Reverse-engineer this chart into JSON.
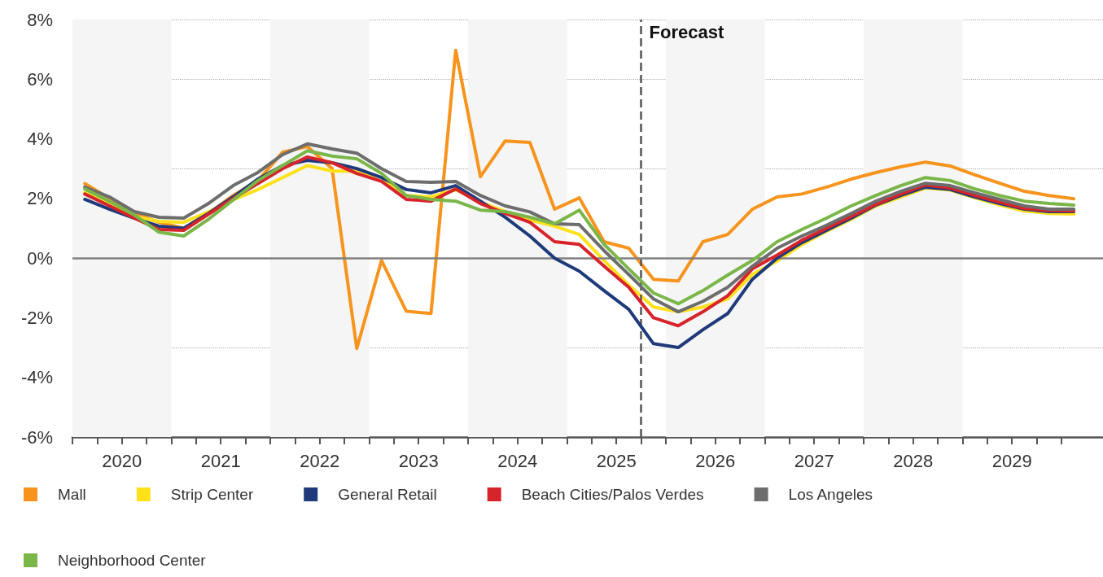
{
  "chart_data": {
    "type": "line",
    "x": [
      2020.125,
      2020.375,
      2020.625,
      2020.875,
      2021.125,
      2021.375,
      2021.625,
      2021.875,
      2022.125,
      2022.375,
      2022.625,
      2022.875,
      2023.125,
      2023.375,
      2023.625,
      2023.875,
      2024.125,
      2024.375,
      2024.625,
      2024.875,
      2025.125,
      2025.375,
      2025.625,
      2025.875,
      2026.125,
      2026.375,
      2026.625,
      2026.875,
      2027.125,
      2027.375,
      2027.625,
      2027.875,
      2028.125,
      2028.375,
      2028.625,
      2028.875,
      2029.125,
      2029.375,
      2029.625,
      2029.875,
      2030.125
    ],
    "xlim": [
      2020,
      2030.42
    ],
    "xticks": [
      {
        "value": 2020,
        "label": null
      },
      {
        "value": 2020.25,
        "label": null
      },
      {
        "value": 2020.5,
        "label": "2020"
      },
      {
        "value": 2020.75,
        "label": null
      },
      {
        "value": 2021,
        "label": null
      },
      {
        "value": 2021.25,
        "label": null
      },
      {
        "value": 2021.5,
        "label": "2021"
      },
      {
        "value": 2021.75,
        "label": null
      },
      {
        "value": 2022,
        "label": null
      },
      {
        "value": 2022.25,
        "label": null
      },
      {
        "value": 2022.5,
        "label": "2022"
      },
      {
        "value": 2022.75,
        "label": null
      },
      {
        "value": 2023,
        "label": null
      },
      {
        "value": 2023.25,
        "label": null
      },
      {
        "value": 2023.5,
        "label": "2023"
      },
      {
        "value": 2023.75,
        "label": null
      },
      {
        "value": 2024,
        "label": null
      },
      {
        "value": 2024.25,
        "label": null
      },
      {
        "value": 2024.5,
        "label": "2024"
      },
      {
        "value": 2024.75,
        "label": null
      },
      {
        "value": 2025,
        "label": null
      },
      {
        "value": 2025.25,
        "label": null
      },
      {
        "value": 2025.5,
        "label": "2025"
      },
      {
        "value": 2025.75,
        "label": null
      },
      {
        "value": 2026,
        "label": null
      },
      {
        "value": 2026.25,
        "label": null
      },
      {
        "value": 2026.5,
        "label": "2026"
      },
      {
        "value": 2026.75,
        "label": null
      },
      {
        "value": 2027,
        "label": null
      },
      {
        "value": 2027.25,
        "label": null
      },
      {
        "value": 2027.5,
        "label": "2027"
      },
      {
        "value": 2027.75,
        "label": null
      },
      {
        "value": 2028,
        "label": null
      },
      {
        "value": 2028.25,
        "label": null
      },
      {
        "value": 2028.5,
        "label": "2028"
      },
      {
        "value": 2028.75,
        "label": null
      },
      {
        "value": 2029,
        "label": null
      },
      {
        "value": 2029.25,
        "label": null
      },
      {
        "value": 2029.5,
        "label": "2029"
      },
      {
        "value": 2029.75,
        "label": null
      },
      {
        "value": 2030,
        "label": null
      }
    ],
    "ylim": [
      -6,
      8
    ],
    "yticks": [
      {
        "value": -6,
        "label": "-6%"
      },
      {
        "value": -4,
        "label": "-4%"
      },
      {
        "value": -2,
        "label": "-2%"
      },
      {
        "value": 0,
        "label": "0%"
      },
      {
        "value": 2,
        "label": "2%"
      },
      {
        "value": 4,
        "label": "4%"
      },
      {
        "value": 6,
        "label": "6%"
      },
      {
        "value": 8,
        "label": "8%"
      }
    ],
    "grid": "y",
    "legend": "bottom",
    "marker": "none",
    "line_style": "solid",
    "bands": [
      {
        "axis": "x",
        "from": 2020,
        "to": 2021,
        "color": "#f5f5f5"
      },
      {
        "axis": "x",
        "from": 2022,
        "to": 2023,
        "color": "#f5f5f5"
      },
      {
        "axis": "x",
        "from": 2024,
        "to": 2025,
        "color": "#f5f5f5"
      },
      {
        "axis": "x",
        "from": 2026,
        "to": 2027,
        "color": "#f5f5f5"
      },
      {
        "axis": "x",
        "from": 2028,
        "to": 2029,
        "color": "#f5f5f5"
      }
    ],
    "ref_lines": [
      {
        "axis": "x",
        "value": 2025.75,
        "label": "Forecast",
        "color": "#555555",
        "line_style": "dashed"
      },
      {
        "axis": "y",
        "value": 0,
        "color": "#808080",
        "line_style": "solid"
      }
    ],
    "series": [
      {
        "name": "Mall",
        "color": "#f7941d",
        "values": [
          2.5,
          2.0,
          1.5,
          1.2,
          1.0,
          1.5,
          2.1,
          2.6,
          3.55,
          3.74,
          3.0,
          -3.03,
          -0.08,
          -1.78,
          -1.86,
          6.97,
          2.73,
          3.93,
          3.88,
          1.64,
          2.02,
          0.55,
          0.33,
          -0.71,
          -0.77,
          0.55,
          0.79,
          1.64,
          2.05,
          2.15,
          2.38,
          2.65,
          2.87,
          3.06,
          3.22,
          3.09,
          2.79,
          2.51,
          2.24,
          2.1,
          1.99
        ]
      },
      {
        "name": "Strip Center",
        "color": "#ffe11a",
        "values": [
          2.2,
          1.8,
          1.4,
          1.23,
          1.2,
          1.55,
          1.95,
          2.3,
          2.7,
          3.1,
          2.92,
          2.92,
          2.7,
          2.1,
          2.05,
          2.3,
          1.88,
          1.56,
          1.28,
          1.07,
          0.79,
          -0.08,
          -0.9,
          -1.64,
          -1.8,
          -1.64,
          -1.37,
          -0.55,
          -0.1,
          0.45,
          0.9,
          1.3,
          1.75,
          2.05,
          2.35,
          2.28,
          2.02,
          1.78,
          1.58,
          1.5,
          1.48
        ]
      },
      {
        "name": "General Retail",
        "color": "#1f3a7a",
        "values": [
          1.97,
          1.64,
          1.34,
          1.07,
          1.0,
          1.5,
          2.05,
          2.65,
          3.1,
          3.28,
          3.2,
          3.0,
          2.7,
          2.3,
          2.19,
          2.43,
          1.91,
          1.37,
          0.74,
          0.0,
          -0.44,
          -1.09,
          -1.72,
          -2.87,
          -3.0,
          -2.4,
          -1.86,
          -0.71,
          0.0,
          0.52,
          0.93,
          1.34,
          1.78,
          2.1,
          2.38,
          2.3,
          2.05,
          1.83,
          1.64,
          1.56,
          1.56
        ]
      },
      {
        "name": "Beach Cities/Palos Verdes",
        "color": "#d7242b",
        "values": [
          2.15,
          1.75,
          1.34,
          0.96,
          0.93,
          1.47,
          2.0,
          2.5,
          3.0,
          3.39,
          3.2,
          2.84,
          2.57,
          1.97,
          1.91,
          2.32,
          1.83,
          1.5,
          1.2,
          0.55,
          0.46,
          -0.27,
          -0.98,
          -2.0,
          -2.27,
          -1.8,
          -1.26,
          -0.36,
          0.1,
          0.6,
          1.0,
          1.4,
          1.8,
          2.15,
          2.45,
          2.35,
          2.1,
          1.88,
          1.66,
          1.6,
          1.58
        ]
      },
      {
        "name": "Los Angeles",
        "color": "#6d6d6d",
        "values": [
          2.38,
          2.05,
          1.56,
          1.37,
          1.34,
          1.83,
          2.43,
          2.87,
          3.47,
          3.83,
          3.66,
          3.52,
          3.0,
          2.57,
          2.54,
          2.57,
          2.1,
          1.75,
          1.55,
          1.15,
          1.12,
          0.25,
          -0.55,
          -1.37,
          -1.8,
          -1.45,
          -0.98,
          -0.27,
          0.33,
          0.74,
          1.1,
          1.5,
          1.91,
          2.24,
          2.51,
          2.43,
          2.19,
          1.97,
          1.75,
          1.64,
          1.64
        ]
      },
      {
        "name": "Neighborhood Center",
        "color": "#7ab648",
        "values": [
          2.32,
          1.9,
          1.45,
          0.87,
          0.74,
          1.3,
          1.95,
          2.6,
          3.1,
          3.6,
          3.42,
          3.33,
          2.84,
          2.1,
          1.97,
          1.91,
          1.61,
          1.56,
          1.37,
          1.15,
          1.61,
          0.46,
          -0.36,
          -1.17,
          -1.53,
          -1.09,
          -0.57,
          -0.08,
          0.55,
          0.96,
          1.34,
          1.75,
          2.1,
          2.43,
          2.7,
          2.6,
          2.32,
          2.1,
          1.91,
          1.83,
          1.78
        ]
      }
    ]
  }
}
